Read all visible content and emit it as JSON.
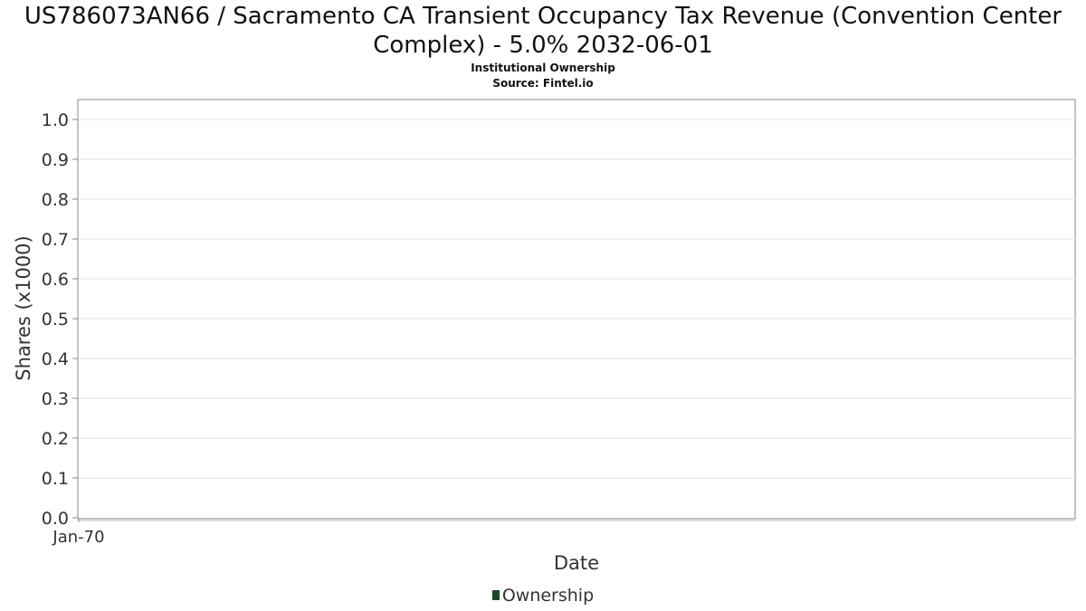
{
  "chart_data": {
    "type": "line",
    "title": "US786073AN66 / Sacramento CA Transient Occupancy Tax Revenue (Convention Center Complex) - 5.0% 2032-06-01",
    "subtitle": "Institutional Ownership",
    "source": "Source: Fintel.io",
    "xlabel": "Date",
    "ylabel": "Shares (x1000)",
    "x_ticks": [
      "Jan-70"
    ],
    "y_ticks": [
      "0.0",
      "0.1",
      "0.2",
      "0.3",
      "0.4",
      "0.5",
      "0.6",
      "0.7",
      "0.8",
      "0.9",
      "1.0"
    ],
    "ylim": [
      0,
      1.0
    ],
    "grid": true,
    "series": [
      {
        "name": "Ownership",
        "color": "#1a4a2a",
        "x": [],
        "values": []
      }
    ],
    "legend": {
      "position": "bottom-center"
    }
  }
}
